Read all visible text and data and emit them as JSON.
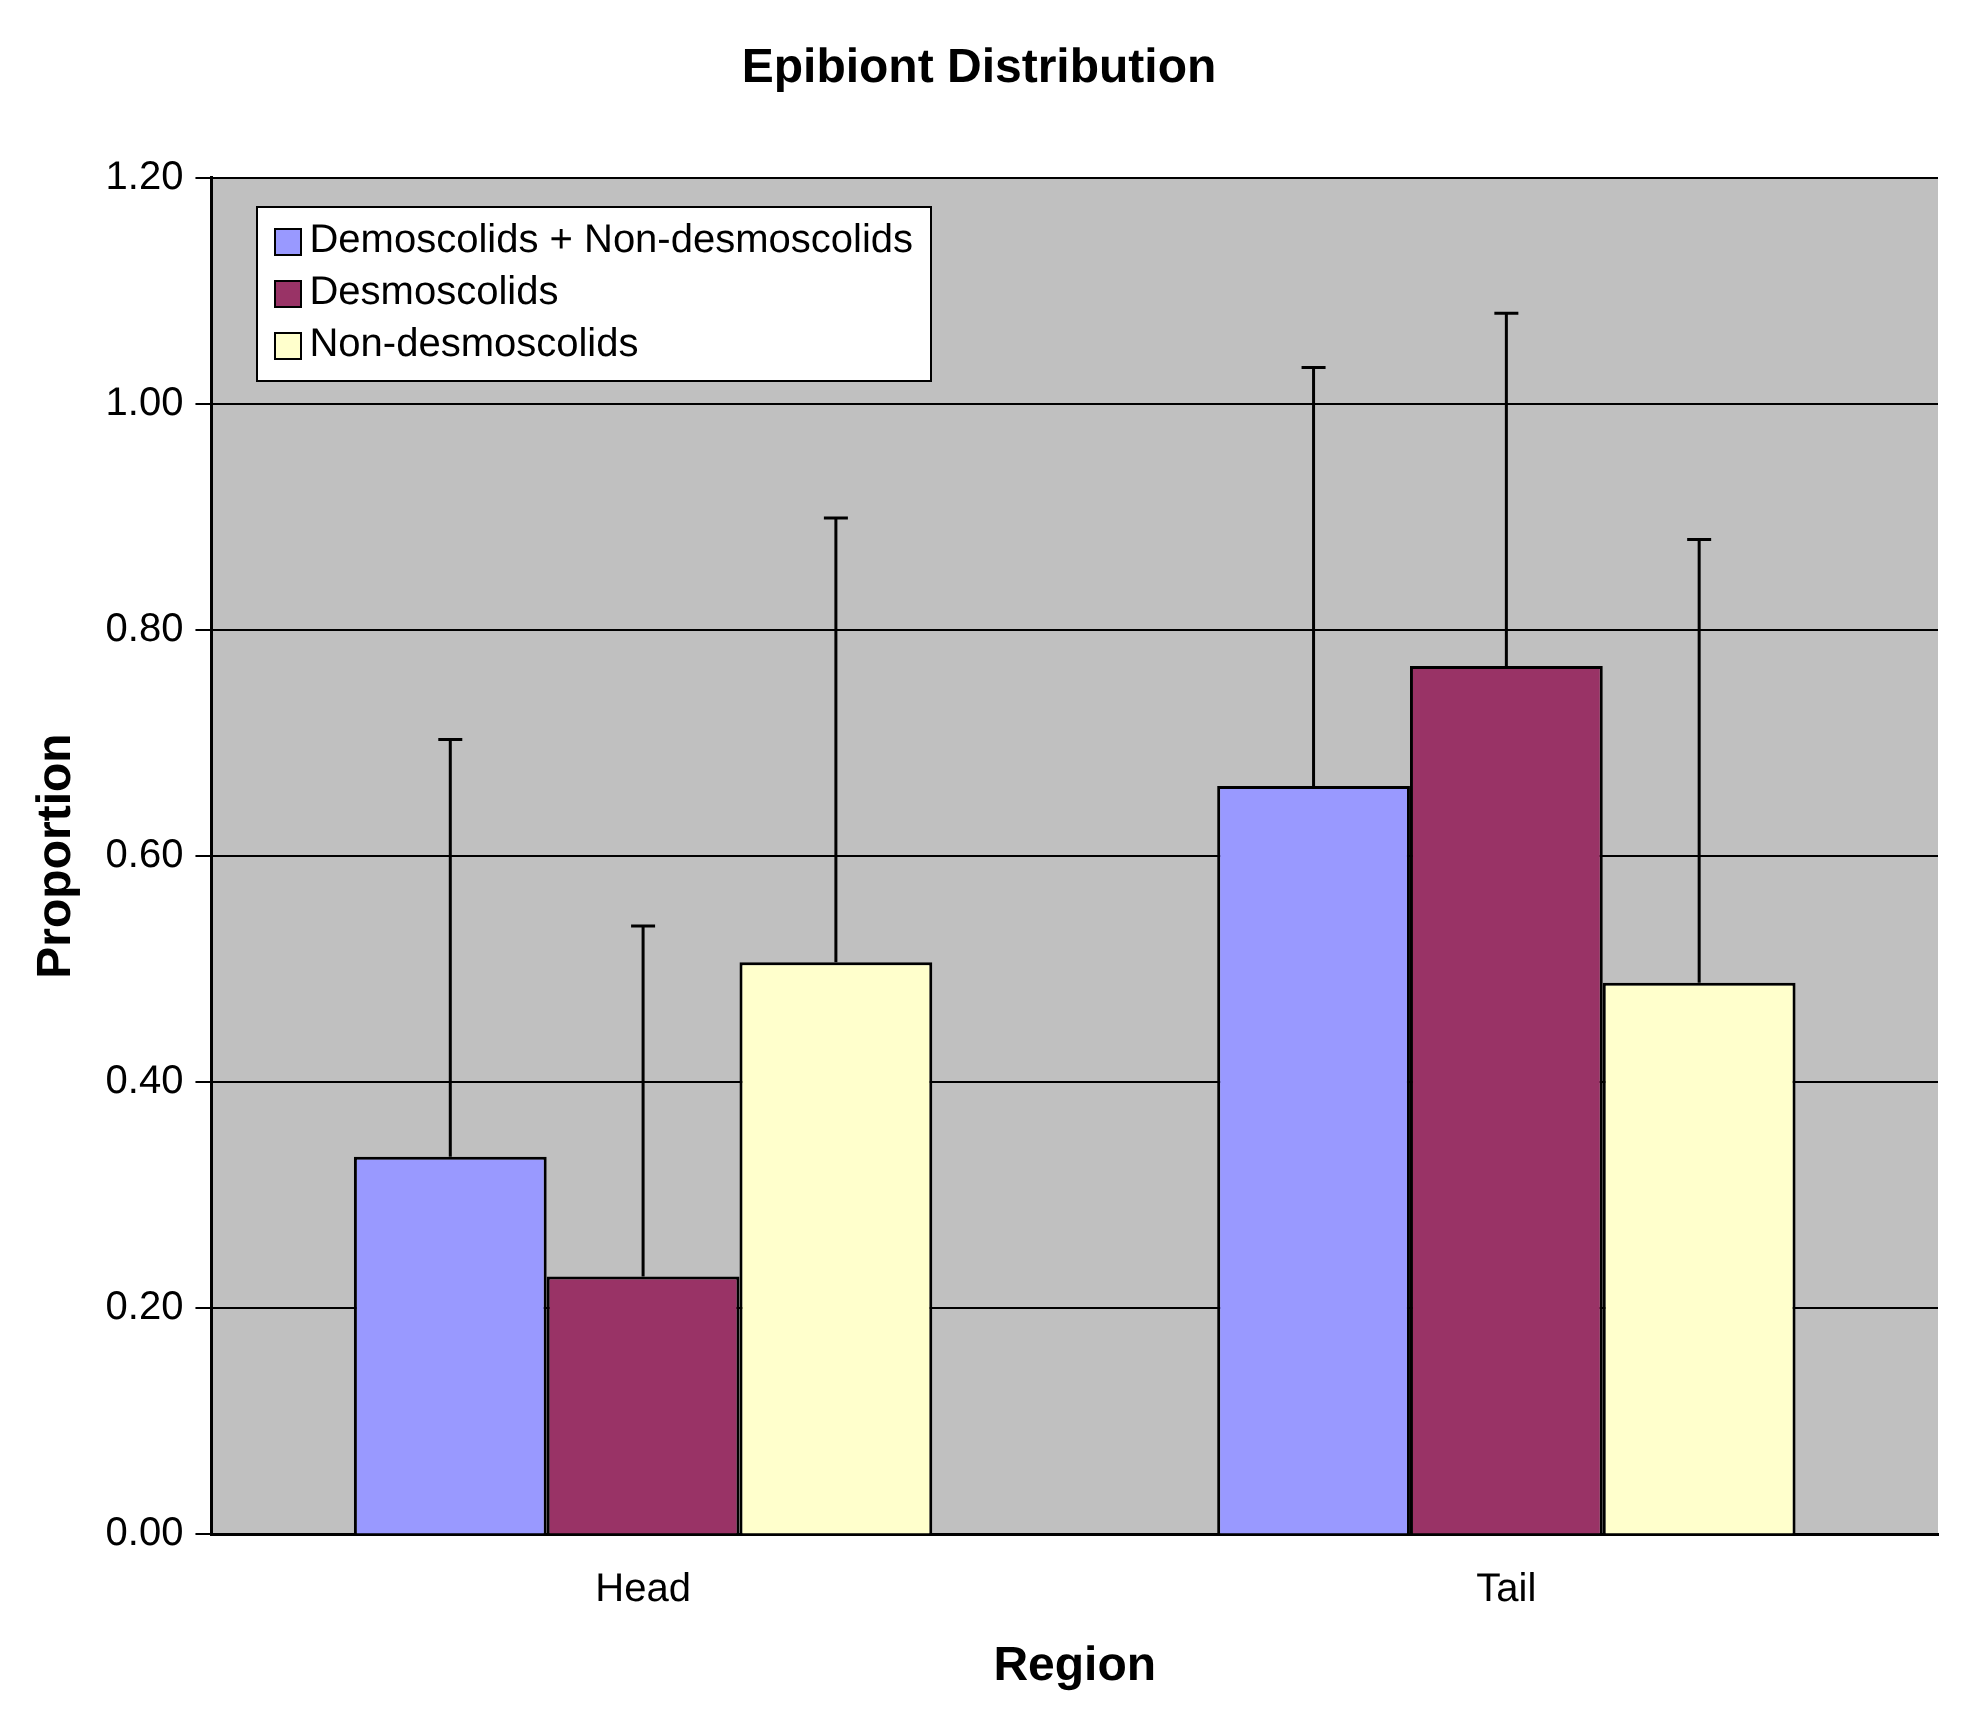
{
  "chart_data": {
    "type": "bar",
    "title": "Epibiont Distribution",
    "xlabel": "Region",
    "ylabel": "Proportion",
    "categories": [
      "Head",
      "Tail"
    ],
    "series": [
      {
        "name": "Demoscolids + Non-desmoscolids",
        "color": "#9999ff",
        "values": [
          0.334,
          0.662
        ],
        "errors": [
          [
            0.334,
            0.703
          ],
          [
            0.662,
            1.032
          ]
        ]
      },
      {
        "name": "Desmoscolids",
        "color": "#993366",
        "values": [
          0.228,
          0.768
        ],
        "errors": [
          [
            0.228,
            0.538
          ],
          [
            0.768,
            1.08
          ]
        ]
      },
      {
        "name": "Non-desmoscolids",
        "color": "#ffffcc",
        "values": [
          0.506,
          0.488
        ],
        "errors": [
          [
            0.506,
            0.899
          ],
          [
            0.488,
            0.88
          ]
        ]
      }
    ],
    "ylim": [
      0,
      1.2
    ],
    "yticks": [
      {
        "value": 0,
        "label": "0.00"
      },
      {
        "value": 0.2,
        "label": "0.20"
      },
      {
        "value": 0.4,
        "label": "0.40"
      },
      {
        "value": 0.6,
        "label": "0.60"
      },
      {
        "value": 0.8,
        "label": "0.80"
      },
      {
        "value": 1,
        "label": "1.00"
      },
      {
        "value": 1.2,
        "label": "1.20"
      }
    ],
    "grid": "y",
    "legend": "top left"
  }
}
